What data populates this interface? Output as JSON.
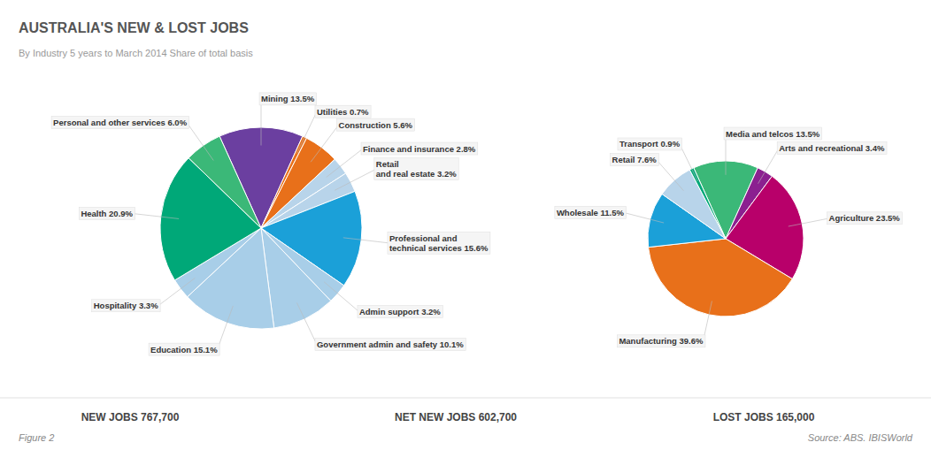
{
  "chart_data": [
    {
      "type": "pie",
      "title": "AUSTRALIA'S NEW & LOST JOBS",
      "subtitle": "By Industry   5 years to March 2014   Share of total basis",
      "categories": [
        "Mining",
        "Utilities",
        "Construction",
        "Finance and insurance",
        "Retail\nand real estate",
        "Professional and\ntechnical services",
        "Admin support",
        "Government admin and safety",
        "Education",
        "Hospitality",
        "Health",
        "Personal and other services"
      ],
      "values": [
        13.5,
        0.7,
        5.6,
        2.8,
        3.2,
        15.6,
        3.2,
        10.1,
        15.1,
        3.3,
        20.9,
        6.0
      ],
      "value_labels": [
        "13.5%",
        "0.7%",
        "5.6%",
        "2.8%",
        "3.2%",
        "15.6%",
        "3.2%",
        "10.1%",
        "15.1%",
        "3.3%",
        "20.9%",
        "6.0%"
      ],
      "colors": [
        "#6B3FA0",
        "#E8701A",
        "#E8701A",
        "#B8D4EA",
        "#B8D4EA",
        "#1BA0D8",
        "#A8CEE8",
        "#A8CEE8",
        "#A8CEE8",
        "#A8CEE8",
        "#00A878",
        "#3BB878"
      ],
      "data_labels": true,
      "annotations": [
        "NEW JOBS 767,700",
        "NET NEW JOBS 602,700",
        "Figure 2",
        "Source: ABS. IBISWorld"
      ]
    },
    {
      "type": "pie",
      "categories": [
        "Media and telcos",
        "Arts and recreational",
        "Agriculture",
        "Manufacturing",
        "Wholesale",
        "Retail",
        "Transport"
      ],
      "values": [
        13.5,
        3.4,
        23.5,
        39.6,
        11.5,
        7.6,
        0.9
      ],
      "value_labels": [
        "13.5%",
        "3.4%",
        "23.5%",
        "39.6%",
        "11.5%",
        "7.6%",
        "0.9%"
      ],
      "colors": [
        "#3BB878",
        "#8B2090",
        "#B8006A",
        "#E8701A",
        "#1BA0D8",
        "#B8D4EA",
        "#00A878"
      ],
      "data_labels": true,
      "annotations": [
        "LOST JOBS 165,000"
      ]
    }
  ]
}
